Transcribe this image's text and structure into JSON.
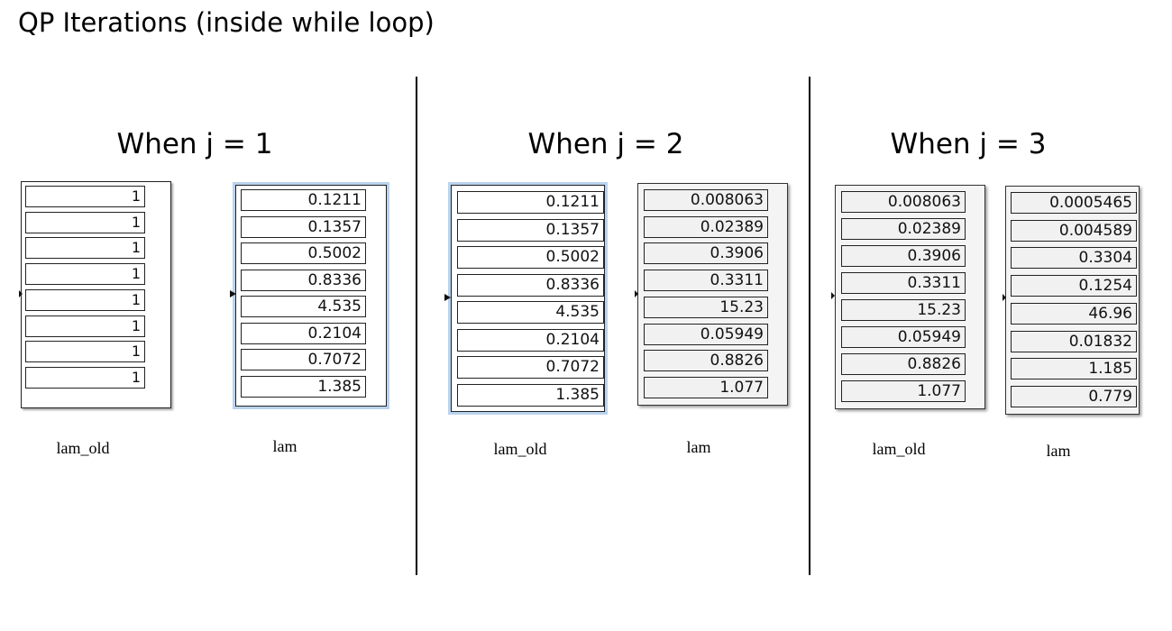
{
  "title": "QP Iterations (inside while loop)",
  "panels": [
    {
      "heading": "When j = 1",
      "left_label": "lam_old",
      "left_values": [
        "1",
        "1",
        "1",
        "1",
        "1",
        "1",
        "1",
        "1"
      ],
      "right_label": "lam",
      "right_values": [
        "0.1211",
        "0.1357",
        "0.5002",
        "0.8336",
        "4.535",
        "0.2104",
        "0.7072",
        "1.385"
      ]
    },
    {
      "heading": "When j = 2",
      "left_label": "lam_old",
      "left_values": [
        "0.1211",
        "0.1357",
        "0.5002",
        "0.8336",
        "4.535",
        "0.2104",
        "0.7072",
        "1.385"
      ],
      "right_label": "lam",
      "right_values": [
        "0.008063",
        "0.02389",
        "0.3906",
        "0.3311",
        "15.23",
        "0.05949",
        "0.8826",
        "1.077"
      ]
    },
    {
      "heading": "When j = 3",
      "left_label": "lam_old",
      "left_values": [
        "0.008063",
        "0.02389",
        "0.3906",
        "0.3311",
        "15.23",
        "0.05949",
        "0.8826",
        "1.077"
      ],
      "right_label": "lam",
      "right_values": [
        "0.0005465",
        "0.004589",
        "0.3304",
        "0.1254",
        "46.96",
        "0.01832",
        "1.185",
        "0.779"
      ]
    }
  ]
}
